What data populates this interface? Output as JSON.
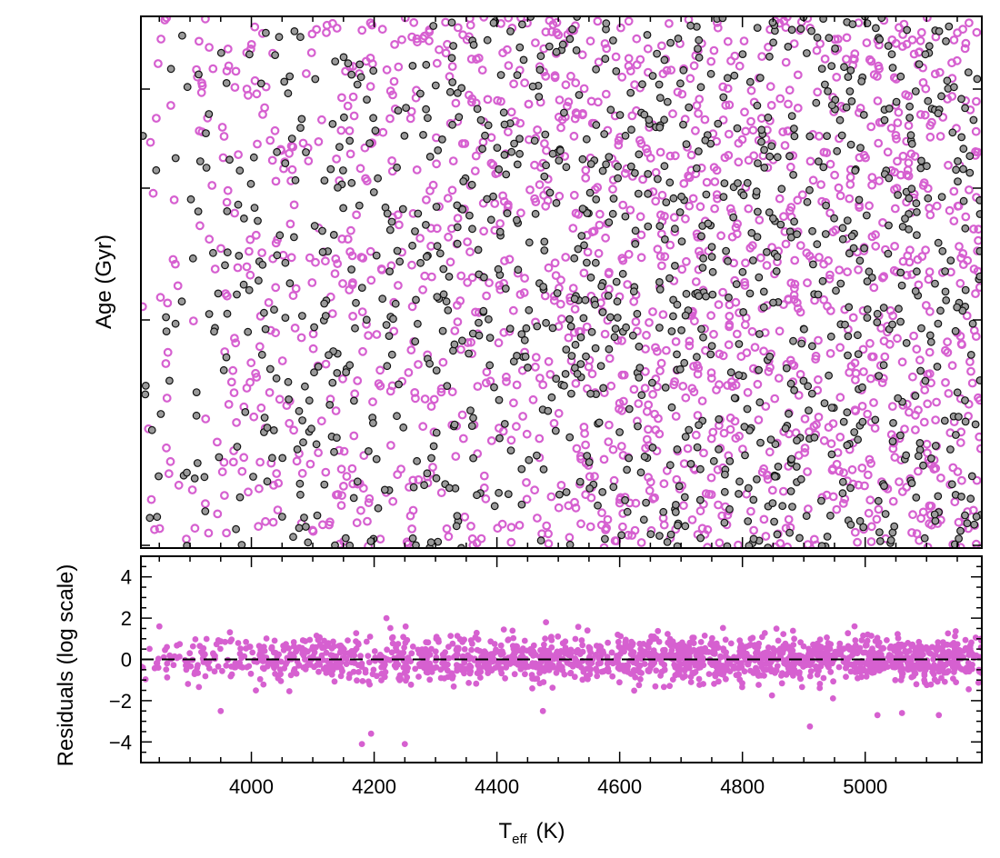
{
  "chart_data": [
    {
      "panel": "top",
      "type": "scatter",
      "ylabel": "Age (Gyr)",
      "xlim": [
        3820,
        5190
      ],
      "ylim": [
        0,
        1
      ],
      "yticks_labels": [],
      "colors": {
        "pink": "#d660d0",
        "gray": "#9a9a9a",
        "edge": "#111111"
      },
      "series": [
        {
          "marker": "open-circle",
          "color": "#d660d0",
          "count": 1600
        },
        {
          "marker": "filled-circle",
          "color": "#9a9a9a",
          "count": 1100
        }
      ]
    },
    {
      "panel": "bottom",
      "type": "scatter",
      "ylabel": "Residuals (log scale)",
      "xlabel_main": "T",
      "xlabel_sub": "eff",
      "xlabel_unit": "(K)",
      "xlim": [
        3820,
        5190
      ],
      "ylim": [
        -5,
        5
      ],
      "xticks": [
        "4000",
        "4200",
        "4400",
        "4600",
        "4800",
        "5000"
      ],
      "yticks": [
        "4",
        "2",
        "0",
        "−2",
        "−4"
      ],
      "reference_line": {
        "y": 0,
        "style": "dashed"
      },
      "outliers": [
        {
          "x": 3950,
          "y": -2.5
        },
        {
          "x": 4180,
          "y": -4.1
        },
        {
          "x": 4195,
          "y": -3.6
        },
        {
          "x": 4250,
          "y": -4.1
        },
        {
          "x": 4475,
          "y": -2.5
        },
        {
          "x": 4910,
          "y": -3.25
        },
        {
          "x": 5020,
          "y": -2.7
        },
        {
          "x": 5060,
          "y": -2.6
        },
        {
          "x": 5120,
          "y": -2.7
        },
        {
          "x": 4220,
          "y": 2.0
        },
        {
          "x": 4480,
          "y": 1.8
        },
        {
          "x": 3850,
          "y": 1.6
        }
      ],
      "series": [
        {
          "marker": "filled-circle",
          "color": "#d660d0",
          "count": 1700
        }
      ]
    }
  ]
}
